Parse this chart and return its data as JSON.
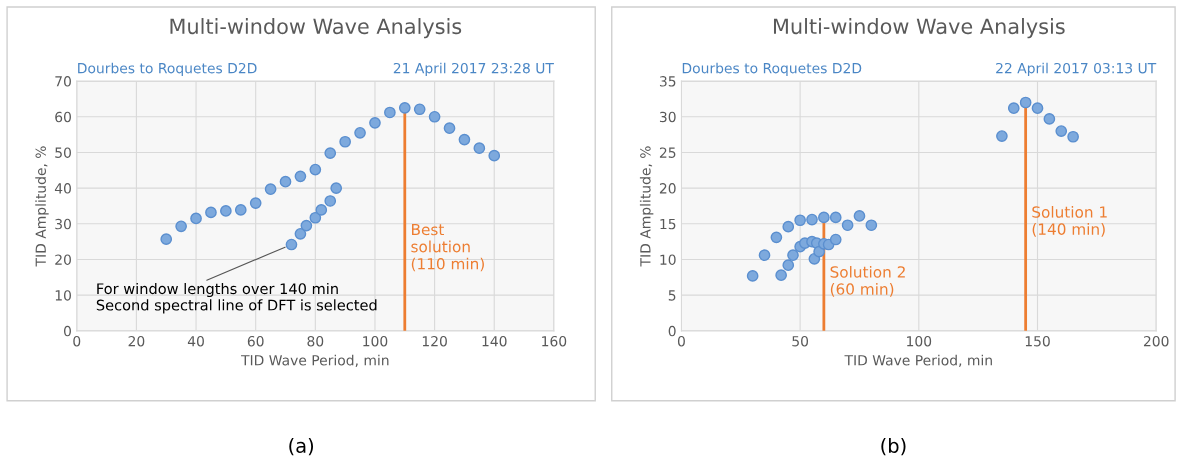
{
  "chart_data": [
    {
      "type": "scatter",
      "title": "Multi-window Wave Analysis",
      "subtitle": "Dourbes to Roquetes D2D",
      "xlabel": "TID Wave Period, min",
      "ylabel": "TID Amplitude, %",
      "series": [
        {
          "color": "#7da9dd",
          "x": [
            30,
            35,
            40,
            45,
            50,
            55,
            60,
            65,
            70,
            75,
            80,
            85,
            90,
            95,
            100,
            105,
            110,
            115,
            120,
            125,
            130,
            135,
            140
          ],
          "values": [
            25.7,
            29.3,
            31.5,
            33.2,
            33.6,
            33.9,
            35.8,
            39.7,
            41.8,
            43.3,
            45.2,
            49.8,
            53,
            55.5,
            58.3,
            61.2,
            62.5,
            62.1,
            60,
            56.8,
            53.6,
            51.2,
            49.1
          ]
        },
        {
          "color": "#7da9dd",
          "x": [
            72,
            75,
            77,
            80,
            82,
            85,
            87
          ],
          "values": [
            24.2,
            27.2,
            29.5,
            31.7,
            33.9,
            36.4,
            40
          ]
        }
      ],
      "xlim": [
        0,
        160
      ],
      "xticks": [
        0,
        20,
        40,
        60,
        80,
        100,
        120,
        140,
        160
      ],
      "ylim": [
        0,
        70
      ],
      "yticks": [
        0,
        10,
        20,
        30,
        40,
        50,
        60,
        70
      ],
      "ref_lines": [
        {
          "axis": "x",
          "value": 110,
          "label": "Best\nsolution\n(110 min)",
          "color": "#ed7d31"
        }
      ],
      "annotations": [
        "21 April 2017 23:28 UT",
        {
          "text": "For window lengths over 140 min\nSecond spectral line of DFT is selected",
          "x": 72,
          "y": 24.2
        },
        "(a)"
      ],
      "grid": true,
      "marker": "circle",
      "legend": false
    },
    {
      "type": "scatter",
      "title": "Multi-window Wave Analysis",
      "subtitle": "Dourbes to Roquetes D2D",
      "xlabel": "TID Wave Period, min",
      "ylabel": "TID Amplitude, %",
      "series": [
        {
          "color": "#7da9dd",
          "x": [
            30,
            35,
            40,
            45,
            50,
            55,
            60,
            65,
            70,
            75,
            80
          ],
          "values": [
            7.7,
            10.6,
            13.1,
            14.6,
            15.5,
            15.6,
            15.9,
            15.9,
            14.8,
            16.1,
            14.8
          ]
        },
        {
          "color": "#7da9dd",
          "x": [
            42,
            45,
            47,
            50,
            52,
            55,
            57,
            56,
            58,
            60,
            62,
            65
          ],
          "values": [
            7.8,
            9.2,
            10.6,
            11.8,
            12.3,
            12.5,
            12.3,
            10.1,
            11.1,
            12.2,
            12.1,
            12.8
          ]
        },
        {
          "color": "#7da9dd",
          "x": [
            135,
            140,
            145,
            150,
            155,
            160,
            165
          ],
          "values": [
            27.3,
            31.2,
            32,
            31.2,
            29.7,
            28,
            27.2
          ]
        }
      ],
      "xlim": [
        0,
        200
      ],
      "xticks": [
        0,
        50,
        100,
        150,
        200
      ],
      "ylim": [
        0,
        35
      ],
      "yticks": [
        0,
        5,
        10,
        15,
        20,
        25,
        30,
        35
      ],
      "ref_lines": [
        {
          "axis": "x",
          "value": 60,
          "label": "Solution 2\n(60 min)",
          "color": "#ed7d31"
        },
        {
          "axis": "x",
          "value": 145,
          "label": "Solution 1\n(140 min)",
          "color": "#ed7d31"
        }
      ],
      "annotations": [
        "22 April 2017 03:13 UT",
        "(b)"
      ],
      "grid": true,
      "marker": "circle",
      "legend": false
    }
  ]
}
